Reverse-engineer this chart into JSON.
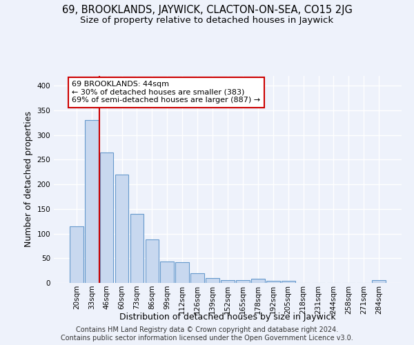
{
  "title": "69, BROOKLANDS, JAYWICK, CLACTON-ON-SEA, CO15 2JG",
  "subtitle": "Size of property relative to detached houses in Jaywick",
  "xlabel": "Distribution of detached houses by size in Jaywick",
  "ylabel": "Number of detached properties",
  "footer_line1": "Contains HM Land Registry data © Crown copyright and database right 2024.",
  "footer_line2": "Contains public sector information licensed under the Open Government Licence v3.0.",
  "categories": [
    "20sqm",
    "33sqm",
    "46sqm",
    "60sqm",
    "73sqm",
    "86sqm",
    "99sqm",
    "112sqm",
    "126sqm",
    "139sqm",
    "152sqm",
    "165sqm",
    "178sqm",
    "192sqm",
    "205sqm",
    "218sqm",
    "231sqm",
    "244sqm",
    "258sqm",
    "271sqm",
    "284sqm"
  ],
  "values": [
    115,
    330,
    265,
    220,
    140,
    88,
    44,
    42,
    19,
    10,
    6,
    6,
    8,
    4,
    4,
    0,
    0,
    0,
    0,
    0,
    5
  ],
  "bar_color": "#c8d8ef",
  "bar_edge_color": "#6699cc",
  "vline_x": 1.5,
  "vline_color": "#cc0000",
  "annotation_line1": "69 BROOKLANDS: 44sqm",
  "annotation_line2": "← 30% of detached houses are smaller (383)",
  "annotation_line3": "69% of semi-detached houses are larger (887) →",
  "annotation_box_color": "#ffffff",
  "annotation_box_edge_color": "#cc0000",
  "ylim": [
    0,
    420
  ],
  "yticks": [
    0,
    50,
    100,
    150,
    200,
    250,
    300,
    350,
    400
  ],
  "background_color": "#eef2fb",
  "grid_color": "#ffffff",
  "title_fontsize": 10.5,
  "subtitle_fontsize": 9.5,
  "axis_label_fontsize": 9,
  "tick_fontsize": 7.5,
  "annotation_fontsize": 8,
  "footer_fontsize": 7
}
